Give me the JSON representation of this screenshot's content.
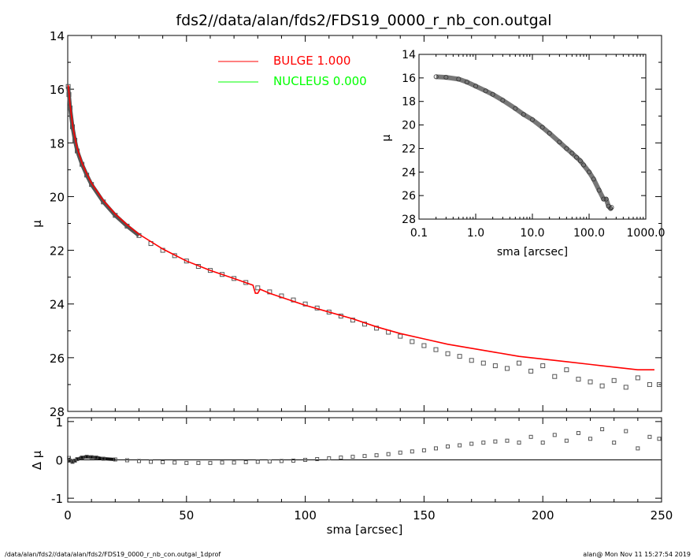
{
  "title": "fds2//data/alan/fds2/FDS19_0000_r_nb_con.outgal",
  "footer_left": "/data/alan/fds2//data/alan/fds2/FDS19_0000_r_nb_con.outgal_1dprof",
  "footer_right": "alan@  Mon Nov 11 15:27:54 2019",
  "chart_data": [
    {
      "type": "scatter",
      "panel": "main",
      "xlabel": "sma [arcsec]",
      "ylabel": "μ",
      "xlim": [
        0,
        250
      ],
      "ylim": [
        28,
        14
      ],
      "x_ticks": [
        "0",
        "50",
        "100",
        "150",
        "200",
        "250"
      ],
      "y_ticks": [
        "14",
        "16",
        "18",
        "20",
        "22",
        "24",
        "26",
        "28"
      ],
      "legend": [
        {
          "label": "BULGE  1.000",
          "color": "#ff0000"
        },
        {
          "label": "NUCLEUS  0.000",
          "color": "#00ff00"
        }
      ],
      "series": [
        {
          "name": "BULGE  1.000",
          "color": "#ff0000",
          "kind": "line",
          "x": [
            0.2,
            0.5,
            1,
            2,
            3,
            4,
            6,
            8,
            10,
            15,
            20,
            25,
            30,
            40,
            50,
            60,
            70,
            78,
            79,
            80,
            81,
            85,
            90,
            100,
            110,
            120,
            130,
            140,
            150,
            160,
            170,
            180,
            190,
            200,
            210,
            220,
            230,
            240,
            247
          ],
          "y": [
            15.85,
            16.1,
            16.6,
            17.3,
            17.8,
            18.2,
            18.75,
            19.15,
            19.5,
            20.15,
            20.65,
            21.05,
            21.4,
            21.95,
            22.4,
            22.75,
            23.05,
            23.3,
            23.6,
            23.6,
            23.45,
            23.6,
            23.75,
            24.05,
            24.3,
            24.55,
            24.85,
            25.1,
            25.3,
            25.5,
            25.65,
            25.8,
            25.95,
            26.05,
            26.15,
            26.25,
            26.35,
            26.45,
            26.45
          ]
        },
        {
          "name": "data",
          "color": "#555555",
          "kind": "points",
          "x": [
            0.2,
            0.5,
            1,
            2,
            3,
            4,
            6,
            8,
            10,
            15,
            20,
            25,
            30,
            35,
            40,
            45,
            50,
            55,
            60,
            65,
            70,
            75,
            80,
            85,
            90,
            95,
            100,
            105,
            110,
            115,
            120,
            125,
            130,
            135,
            140,
            145,
            150,
            155,
            160,
            165,
            170,
            175,
            180,
            185,
            190,
            195,
            200,
            205,
            210,
            215,
            220,
            225,
            230,
            235,
            240,
            245,
            249
          ],
          "y": [
            15.9,
            16.2,
            16.7,
            17.4,
            17.9,
            18.3,
            18.8,
            19.2,
            19.55,
            20.2,
            20.7,
            21.1,
            21.45,
            21.75,
            22.0,
            22.2,
            22.4,
            22.6,
            22.75,
            22.9,
            23.05,
            23.2,
            23.4,
            23.55,
            23.7,
            23.85,
            24.0,
            24.15,
            24.3,
            24.45,
            24.6,
            24.75,
            24.9,
            25.05,
            25.2,
            25.4,
            25.55,
            25.7,
            25.85,
            25.95,
            26.1,
            26.2,
            26.3,
            26.4,
            26.2,
            26.5,
            26.3,
            26.7,
            26.45,
            26.8,
            26.9,
            27.05,
            26.85,
            27.1,
            26.75,
            27.0,
            27.0
          ]
        }
      ]
    },
    {
      "type": "scatter",
      "panel": "inset",
      "xlabel": "sma [arcsec]",
      "ylabel": "μ",
      "xscale": "log",
      "xlim": [
        0.1,
        1000
      ],
      "ylim": [
        28,
        14
      ],
      "x_ticks": [
        "0.1",
        "1.0",
        "10.0",
        "100.0",
        "1000.0"
      ],
      "y_ticks": [
        "14",
        "16",
        "18",
        "20",
        "22",
        "24",
        "26",
        "28"
      ],
      "series": [
        {
          "name": "data",
          "color": "#555555",
          "x": [
            0.2,
            0.3,
            0.5,
            0.7,
            1,
            1.5,
            2,
            3,
            5,
            7,
            10,
            15,
            20,
            30,
            40,
            50,
            60,
            70,
            80,
            100,
            120,
            150,
            180,
            200,
            220,
            240,
            249
          ],
          "y": [
            15.9,
            15.95,
            16.1,
            16.35,
            16.7,
            17.1,
            17.4,
            17.9,
            18.6,
            19.1,
            19.55,
            20.2,
            20.7,
            21.45,
            22.0,
            22.4,
            22.75,
            23.05,
            23.4,
            24.0,
            24.6,
            25.55,
            26.3,
            26.3,
            26.9,
            27.1,
            27.0
          ]
        }
      ]
    },
    {
      "type": "scatter",
      "panel": "residual",
      "xlabel": "sma [arcsec]",
      "ylabel": "Δ μ",
      "xlim": [
        0,
        250
      ],
      "ylim": [
        -1.1,
        1.1
      ],
      "y_ticks": [
        "1",
        "0",
        "-1"
      ],
      "series": [
        {
          "name": "residual",
          "color": "#555555",
          "x": [
            0.5,
            1,
            2,
            3,
            4,
            6,
            8,
            10,
            12,
            15,
            20,
            25,
            30,
            35,
            40,
            45,
            50,
            55,
            60,
            65,
            70,
            75,
            80,
            85,
            90,
            95,
            100,
            105,
            110,
            115,
            120,
            125,
            130,
            135,
            140,
            145,
            150,
            155,
            160,
            165,
            170,
            175,
            180,
            185,
            190,
            195,
            200,
            205,
            210,
            215,
            220,
            225,
            230,
            235,
            240,
            245,
            249
          ],
          "y": [
            0.05,
            -0.02,
            -0.05,
            -0.02,
            0.02,
            0.06,
            0.08,
            0.07,
            0.06,
            0.03,
            0.01,
            -0.01,
            -0.03,
            -0.05,
            -0.06,
            -0.07,
            -0.08,
            -0.08,
            -0.08,
            -0.07,
            -0.07,
            -0.06,
            -0.05,
            -0.04,
            -0.03,
            -0.02,
            0.0,
            0.02,
            0.04,
            0.06,
            0.08,
            0.1,
            0.12,
            0.15,
            0.19,
            0.22,
            0.25,
            0.3,
            0.35,
            0.38,
            0.42,
            0.45,
            0.48,
            0.5,
            0.45,
            0.6,
            0.45,
            0.65,
            0.5,
            0.7,
            0.55,
            0.8,
            0.45,
            0.75,
            0.3,
            0.6,
            0.55
          ]
        }
      ]
    }
  ]
}
